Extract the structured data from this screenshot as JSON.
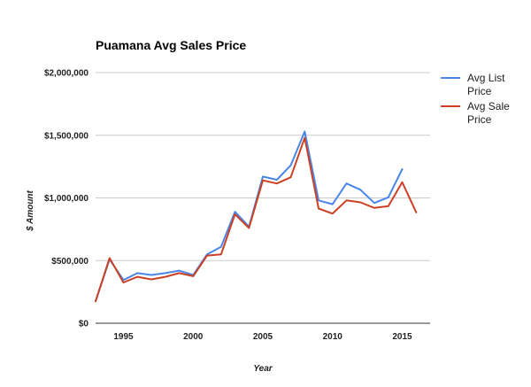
{
  "chart_data": {
    "type": "line",
    "title": "Puamana Avg Sales Price",
    "xlabel": "Year",
    "ylabel": "$ Amount",
    "xlim": [
      1993,
      2017
    ],
    "ylim": [
      0,
      2000000
    ],
    "x_ticks": [
      1995,
      2000,
      2005,
      2010,
      2015
    ],
    "y_ticks": [
      {
        "value": 0,
        "label": "$0"
      },
      {
        "value": 500000,
        "label": "$500,000"
      },
      {
        "value": 1000000,
        "label": "$1,000,000"
      },
      {
        "value": 1500000,
        "label": "$1,500,000"
      },
      {
        "value": 2000000,
        "label": "$2,000,000"
      }
    ],
    "grid": true,
    "legend_position": "right",
    "series": [
      {
        "name": "Avg List Price",
        "color": "#4a86e8",
        "points": [
          [
            1993,
            175000
          ],
          [
            1994,
            510000
          ],
          [
            1995,
            345000
          ],
          [
            1996,
            400000
          ],
          [
            1997,
            385000
          ],
          [
            1998,
            400000
          ],
          [
            1999,
            420000
          ],
          [
            2000,
            385000
          ],
          [
            2001,
            550000
          ],
          [
            2002,
            610000
          ],
          [
            2003,
            890000
          ],
          [
            2004,
            770000
          ],
          [
            2005,
            1170000
          ],
          [
            2006,
            1145000
          ],
          [
            2007,
            1260000
          ],
          [
            2008,
            1530000
          ],
          [
            2009,
            980000
          ],
          [
            2010,
            950000
          ],
          [
            2011,
            1115000
          ],
          [
            2012,
            1065000
          ],
          [
            2013,
            960000
          ],
          [
            2014,
            1005000
          ],
          [
            2015,
            1230000
          ]
        ]
      },
      {
        "name": "Avg Sale Price",
        "color": "#cc4125",
        "points": [
          [
            1993,
            175000
          ],
          [
            1994,
            520000
          ],
          [
            1995,
            325000
          ],
          [
            1996,
            370000
          ],
          [
            1997,
            350000
          ],
          [
            1998,
            370000
          ],
          [
            1999,
            400000
          ],
          [
            2000,
            375000
          ],
          [
            2001,
            540000
          ],
          [
            2002,
            550000
          ],
          [
            2003,
            870000
          ],
          [
            2004,
            760000
          ],
          [
            2005,
            1140000
          ],
          [
            2006,
            1115000
          ],
          [
            2007,
            1165000
          ],
          [
            2008,
            1480000
          ],
          [
            2009,
            915000
          ],
          [
            2010,
            875000
          ],
          [
            2011,
            980000
          ],
          [
            2012,
            965000
          ],
          [
            2013,
            920000
          ],
          [
            2014,
            935000
          ],
          [
            2015,
            1125000
          ],
          [
            2016,
            885000
          ]
        ]
      }
    ]
  }
}
